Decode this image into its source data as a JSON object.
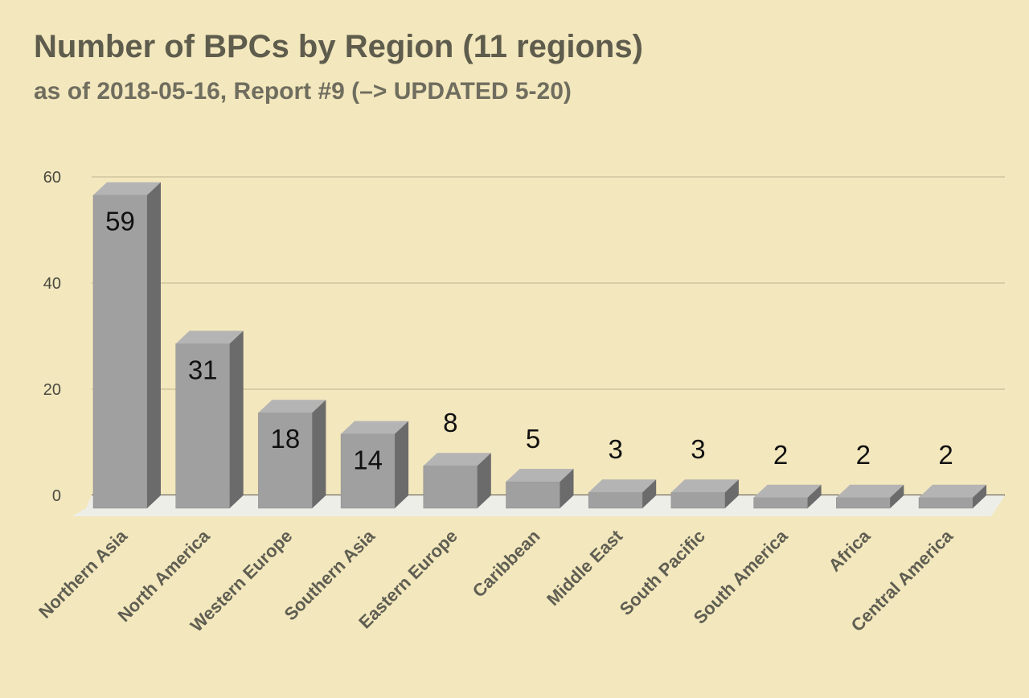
{
  "chart_data": {
    "type": "bar",
    "title": "Number of BPCs by Region (11 regions)",
    "subtitle": "as of 2018-05-16, Report #9 (–> UPDATED 5-20)",
    "categories": [
      "Northern Asia",
      "North America",
      "Western Europe",
      "Southern Asia",
      "Eastern Europe",
      "Caribbean",
      "Middle East",
      "South Pacific",
      "South America",
      "Africa",
      "Central America"
    ],
    "values": [
      59,
      31,
      18,
      14,
      8,
      5,
      3,
      3,
      2,
      2,
      2
    ],
    "ylim": [
      0,
      60
    ],
    "yticks": [
      0,
      20,
      40,
      60
    ],
    "xlabel": "",
    "ylabel": "",
    "grid": true,
    "legend": "none",
    "style": "3d-column",
    "colors": {
      "background": "#f3e7bd",
      "bar_front": "#a0a0a0",
      "bar_top": "#b4b4b4",
      "bar_side": "#6b6b6b",
      "floor": "#eeeee9",
      "grid": "#bdb38f"
    }
  }
}
